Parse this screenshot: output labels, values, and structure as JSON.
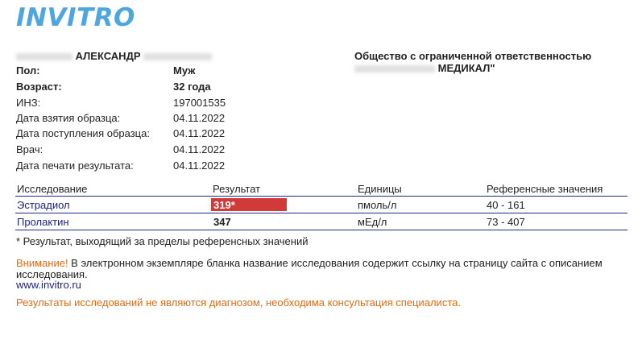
{
  "brand": {
    "logo_text": "INVITRO",
    "logo_color": "#4fa6df"
  },
  "patient": {
    "name_visible": "АЛЕКСАНДР"
  },
  "organization": {
    "line1": "Общество с ограниченной ответственностью",
    "line2": "МЕДИКАЛ\""
  },
  "info": [
    {
      "label": "Пол:",
      "value": "Муж",
      "bold": true
    },
    {
      "label": "Возраст:",
      "value": "32 года",
      "bold": true
    },
    {
      "label": "ИНЗ:",
      "value": "197001535",
      "bold": false
    },
    {
      "label": "Дата взятия образца:",
      "value": "04.11.2022",
      "bold": false
    },
    {
      "label": "Дата поступления образца:",
      "value": "04.11.2022",
      "bold": false
    },
    {
      "label": "Врач:",
      "value": "04.11.2022",
      "bold": false
    },
    {
      "label": "Дата печати результата:",
      "value": "04.11.2022",
      "bold": false
    }
  ],
  "results_table": {
    "headers": [
      "Исследование",
      "Результат",
      "Единицы",
      "Референсные значения"
    ],
    "rows": [
      {
        "test": "Эстрадиол",
        "result": "319*",
        "units": "пмоль/л",
        "reference": "40 - 161",
        "flagged": true
      },
      {
        "test": "Пролактин",
        "result": "347",
        "units": "мЕд/л",
        "reference": "73 - 407",
        "flagged": false
      }
    ],
    "flag_color": "#d23a3a",
    "line_color": "#1b2a8b"
  },
  "footnote": "* Результат, выходящий за пределы референсных значений",
  "warning": {
    "prefix": "Внимание!",
    "text": " В электронном экземпляре бланка название исследования содержит ссылку на страницу сайта с описанием исследования."
  },
  "site_link": "www.invitro.ru",
  "disclaimer": "Результаты исследований не являются диагнозом, необходима консультация специалиста.",
  "accent_color": "#e46a12"
}
